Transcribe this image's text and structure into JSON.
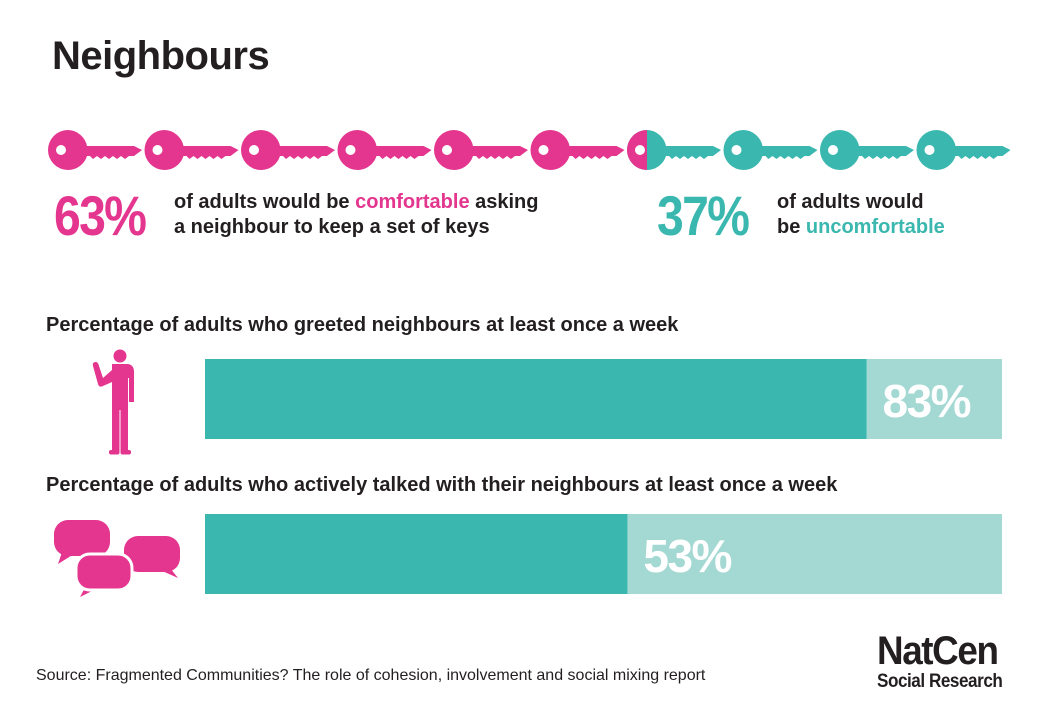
{
  "title": "Neighbours",
  "colors": {
    "pink": "#e4358f",
    "teal": "#3ab7ae",
    "teal_light": "#a3d8d3",
    "text": "#231f20"
  },
  "keys": {
    "count": 10,
    "pink_fraction": 0.63,
    "icon": "key-icon"
  },
  "comfortable": {
    "percent": "63%",
    "text_before": "of adults would be ",
    "highlight": "comfortable",
    "text_after": " asking",
    "line2": "a neighbour to keep a set of keys"
  },
  "uncomfortable": {
    "percent": "37%",
    "line1": "of adults would",
    "line2_prefix": "be ",
    "highlight": "uncomfortable"
  },
  "chart_data": [
    {
      "type": "bar",
      "title": "Percentage of adults who greeted neighbours at least once a week",
      "values": [
        83
      ],
      "value_label": "83%",
      "ylim": [
        0,
        100
      ],
      "icon": "person-waving-icon"
    },
    {
      "type": "bar",
      "title": "Percentage of adults who actively talked with their neighbours at least once a week",
      "values": [
        53
      ],
      "value_label": "53%",
      "ylim": [
        0,
        100
      ],
      "icon": "speech-bubbles-icon"
    }
  ],
  "source": "Source: Fragmented Communities? The role of cohesion, involvement and social mixing report",
  "logo": {
    "main": "NatCen",
    "sub": "Social Research"
  }
}
